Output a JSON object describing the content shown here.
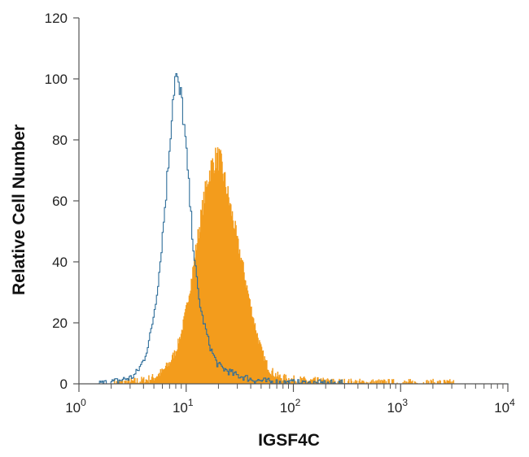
{
  "chart_data": {
    "type": "area",
    "xlabel": "IGSF4C",
    "ylabel": "Relative Cell Number",
    "xscale": "log",
    "xlim": [
      1,
      10000
    ],
    "ylim": [
      0,
      120
    ],
    "grid": false,
    "y_ticks": [
      0,
      20,
      40,
      60,
      80,
      100,
      120
    ],
    "x_ticks": [
      {
        "value": 1,
        "base": "10",
        "exp": "0"
      },
      {
        "value": 10,
        "base": "10",
        "exp": "1"
      },
      {
        "value": 100,
        "base": "10",
        "exp": "2"
      },
      {
        "value": 1000,
        "base": "10",
        "exp": "3"
      },
      {
        "value": 10000,
        "base": "10",
        "exp": "4"
      }
    ],
    "series": [
      {
        "style": "outline",
        "color": "#2f6e9a",
        "x": [
          1.0,
          1.5,
          2.0,
          2.3,
          2.6,
          3.0,
          3.3,
          3.6,
          4.0,
          4.4,
          4.8,
          5.2,
          5.6,
          6.0,
          6.4,
          6.8,
          7.1,
          7.4,
          7.7,
          8.0,
          8.3,
          8.6,
          9.0,
          9.4,
          9.8,
          10.2,
          10.6,
          11.0,
          11.5,
          12.0,
          12.5,
          13.0,
          14.0,
          15.0,
          16.0,
          17.0,
          18.0,
          19.0,
          20.0,
          22.0,
          25.0,
          28.0,
          32.0,
          36.0,
          40.0,
          45.0,
          50.0,
          60.0,
          80.0,
          120.0,
          200.0,
          500.0,
          1000.0,
          2000.0,
          5000.0,
          10000.0
        ],
        "y": [
          0,
          0,
          0.5,
          1,
          1.5,
          2,
          3,
          5,
          8,
          13,
          20,
          28,
          38,
          50,
          62,
          74,
          84,
          93,
          99,
          101,
          97,
          95,
          93,
          86,
          78,
          70,
          62,
          54,
          46,
          39,
          33,
          28,
          22,
          18,
          14,
          11,
          9,
          7,
          6,
          5,
          4,
          3,
          2.5,
          2,
          1.5,
          1.2,
          1,
          0.6,
          0.4,
          0.2,
          0.1,
          0,
          0,
          0,
          0,
          0
        ]
      },
      {
        "style": "filled",
        "color": "#f39c1c",
        "x": [
          1.0,
          2.0,
          3.0,
          4.0,
          5.0,
          6.0,
          7.0,
          8.0,
          9.0,
          10.0,
          11.0,
          12.0,
          13.0,
          14.0,
          15.0,
          16.0,
          17.0,
          18.0,
          19.0,
          20.0,
          21.0,
          22.0,
          24.0,
          26.0,
          28.0,
          30.0,
          33.0,
          36.0,
          40.0,
          45.0,
          50.0,
          55.0,
          60.0,
          70.0,
          80.0,
          100.0,
          130.0,
          200.0,
          300.0,
          500.0,
          1000.0,
          10000.0
        ],
        "y": [
          0,
          0,
          0.5,
          1,
          2,
          4,
          7,
          11,
          17,
          25,
          33,
          42,
          50,
          57,
          63,
          68,
          71,
          73,
          74,
          74,
          72,
          69,
          63,
          57,
          52,
          46,
          40,
          33,
          25,
          17,
          11,
          7,
          4.5,
          2.5,
          1.8,
          1.2,
          0.9,
          0.5,
          0.3,
          0.2,
          0.1,
          0
        ]
      }
    ]
  }
}
